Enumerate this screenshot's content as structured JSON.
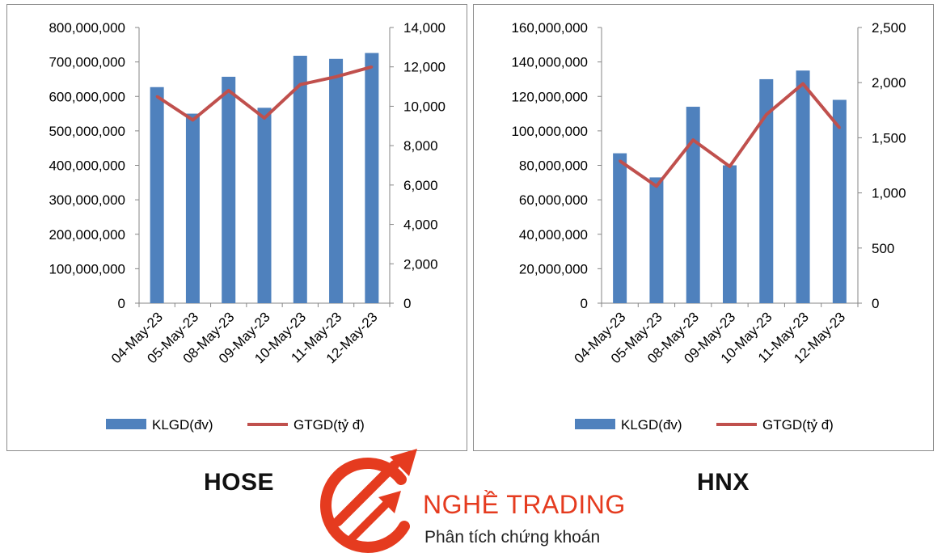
{
  "colors": {
    "bar": "#4f81bd",
    "line": "#c0504d",
    "axis_text": "#000000",
    "brand": "#e53b1f"
  },
  "exchanges": {
    "hose": "HOSE",
    "hnx": "HNX"
  },
  "brand": {
    "name": "NGHỀ TRADING",
    "tagline": "Phân tích chứng khoán",
    "logo_icon": "circular-arrows-logo-icon"
  },
  "chart_data": [
    {
      "type": "bar",
      "categories": [
        "04-May-23",
        "05-May-23",
        "08-May-23",
        "09-May-23",
        "10-May-23",
        "11-May-23",
        "12-May-23"
      ],
      "series": [
        {
          "name": "KLGD(đv)",
          "type": "bar",
          "axis": "left",
          "values": [
            627000000,
            550000000,
            657000000,
            567000000,
            718000000,
            709000000,
            726000000
          ]
        },
        {
          "name": "GTGD(tỷ  đ)",
          "type": "line",
          "axis": "right",
          "values": [
            10500,
            9300,
            10800,
            9400,
            11100,
            11500,
            12000
          ]
        }
      ],
      "ylim_left": [
        0,
        800000000
      ],
      "ylim_right": [
        0,
        14000
      ],
      "yticks_left": [
        "0",
        "100,000,000",
        "200,000,000",
        "300,000,000",
        "400,000,000",
        "500,000,000",
        "600,000,000",
        "700,000,000",
        "800,000,000"
      ],
      "yticks_right": [
        "0",
        "2,000",
        "4,000",
        "6,000",
        "8,000",
        "10,000",
        "12,000",
        "14,000"
      ],
      "legend": "bottom",
      "grid": false
    },
    {
      "type": "bar",
      "categories": [
        "04-May-23",
        "05-May-23",
        "08-May-23",
        "09-May-23",
        "10-May-23",
        "11-May-23",
        "12-May-23"
      ],
      "series": [
        {
          "name": "KLGD(đv)",
          "type": "bar",
          "axis": "left",
          "values": [
            87000000,
            73000000,
            114000000,
            80000000,
            130000000,
            135000000,
            118000000
          ]
        },
        {
          "name": "GTGD(tỷ  đ)",
          "type": "line",
          "axis": "right",
          "values": [
            1290,
            1060,
            1480,
            1240,
            1710,
            1990,
            1590
          ]
        }
      ],
      "ylim_left": [
        0,
        160000000
      ],
      "ylim_right": [
        0,
        2500
      ],
      "yticks_left": [
        "0",
        "20,000,000",
        "40,000,000",
        "60,000,000",
        "80,000,000",
        "100,000,000",
        "120,000,000",
        "140,000,000",
        "160,000,000"
      ],
      "yticks_right": [
        "0",
        "500",
        "1,000",
        "1,500",
        "2,000",
        "2,500"
      ],
      "legend": "bottom",
      "grid": false
    }
  ]
}
